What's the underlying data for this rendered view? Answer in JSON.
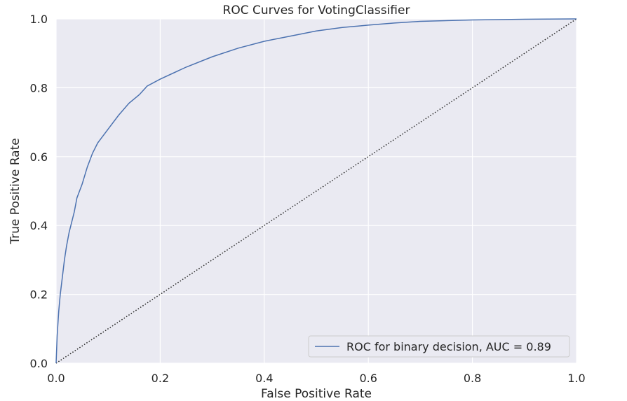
{
  "chart_data": {
    "type": "line",
    "title": "ROC Curves for VotingClassifier",
    "xlabel": "False Positive Rate",
    "ylabel": "True Positive Rate",
    "xlim": [
      0.0,
      1.0
    ],
    "ylim": [
      0.0,
      1.0
    ],
    "x_ticks": [
      "0.0",
      "0.2",
      "0.4",
      "0.6",
      "0.8",
      "1.0"
    ],
    "y_ticks": [
      "0.0",
      "0.2",
      "0.4",
      "0.6",
      "0.8",
      "1.0"
    ],
    "grid": true,
    "legend_position": "lower-right",
    "colors": {
      "background": "#EAEAF2",
      "grid": "#FFFFFF",
      "roc": "#4C72B0",
      "diagonal": "#262626"
    },
    "series": [
      {
        "name": "ROC for binary decision, AUC = 0.89",
        "x": [
          0.0,
          0.002,
          0.005,
          0.008,
          0.012,
          0.016,
          0.02,
          0.025,
          0.03,
          0.035,
          0.04,
          0.045,
          0.05,
          0.06,
          0.07,
          0.08,
          0.09,
          0.1,
          0.12,
          0.14,
          0.16,
          0.175,
          0.2,
          0.25,
          0.3,
          0.35,
          0.4,
          0.45,
          0.5,
          0.55,
          0.6,
          0.65,
          0.7,
          0.8,
          0.9,
          1.0
        ],
        "y": [
          0.0,
          0.08,
          0.15,
          0.2,
          0.25,
          0.3,
          0.34,
          0.38,
          0.41,
          0.44,
          0.48,
          0.5,
          0.52,
          0.57,
          0.61,
          0.64,
          0.66,
          0.68,
          0.72,
          0.755,
          0.78,
          0.805,
          0.825,
          0.86,
          0.89,
          0.915,
          0.935,
          0.95,
          0.965,
          0.975,
          0.982,
          0.988,
          0.993,
          0.997,
          0.999,
          1.0
        ]
      }
    ],
    "reference_line": {
      "x": [
        0.0,
        1.0
      ],
      "y": [
        0.0,
        1.0
      ]
    }
  }
}
